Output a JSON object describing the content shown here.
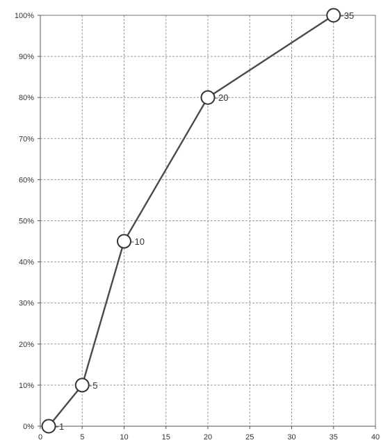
{
  "chart_data": {
    "type": "line",
    "title": "",
    "xlabel": "",
    "ylabel": "",
    "xlim": [
      0,
      40
    ],
    "ylim": [
      0,
      100
    ],
    "x_ticks": [
      0,
      5,
      10,
      15,
      20,
      25,
      30,
      35,
      40
    ],
    "x_tick_labels": [
      "0",
      "5",
      "10",
      "15",
      "20",
      "25",
      "30",
      "35",
      "40"
    ],
    "y_ticks": [
      0,
      10,
      20,
      30,
      40,
      50,
      60,
      70,
      80,
      90,
      100
    ],
    "y_tick_labels": [
      "0%",
      "10%",
      "20%",
      "30%",
      "40%",
      "50%",
      "60%",
      "70%",
      "80%",
      "90%",
      "100%"
    ],
    "grid": true,
    "colors": {
      "line": "#4a4a4a",
      "marker_fill": "#ffffff",
      "marker_stroke": "#333333"
    },
    "series": [
      {
        "points": [
          {
            "x": 1,
            "y": 0,
            "label": "1"
          },
          {
            "x": 5,
            "y": 10,
            "label": "5"
          },
          {
            "x": 10,
            "y": 45,
            "label": "10"
          },
          {
            "x": 20,
            "y": 80,
            "label": "20"
          },
          {
            "x": 35,
            "y": 100,
            "label": "35"
          }
        ]
      }
    ]
  }
}
